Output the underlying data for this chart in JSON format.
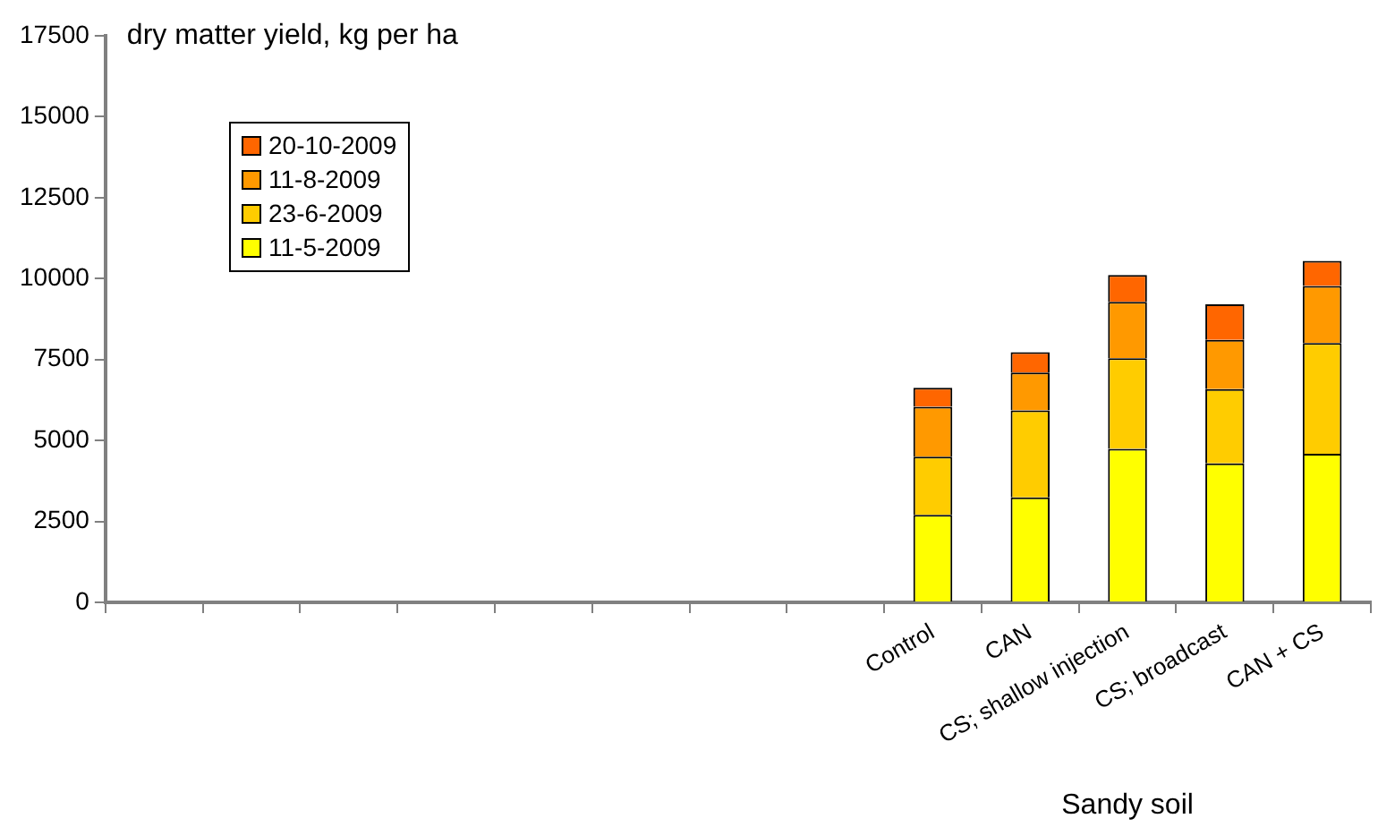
{
  "chart_data": {
    "type": "bar",
    "stacked": true,
    "ylabel": "dry matter yield, kg per ha",
    "annotations": [
      "Sandy soil"
    ],
    "categories": [
      null,
      null,
      null,
      null,
      null,
      null,
      null,
      null,
      "Control",
      "CAN",
      "CS; shallow injection",
      "CS; broadcast",
      "CAN + CS"
    ],
    "series": [
      {
        "name": "11-5-2009",
        "color": "#ffff00",
        "values": [
          null,
          null,
          null,
          null,
          null,
          null,
          null,
          null,
          2700,
          3240,
          4740,
          4290,
          4590
        ]
      },
      {
        "name": "23-6-2009",
        "color": "#ffcc00",
        "values": [
          null,
          null,
          null,
          null,
          null,
          null,
          null,
          null,
          1800,
          2690,
          2800,
          2300,
          3420
        ]
      },
      {
        "name": "11-8-2009",
        "color": "#ff9900",
        "values": [
          null,
          null,
          null,
          null,
          null,
          null,
          null,
          null,
          1540,
          1170,
          1740,
          1520,
          1760
        ]
      },
      {
        "name": "20-10-2009",
        "color": "#ff6600",
        "values": [
          null,
          null,
          null,
          null,
          null,
          null,
          null,
          null,
          590,
          630,
          830,
          1100,
          780
        ]
      }
    ],
    "ylim": [
      0,
      17500
    ],
    "yticks": [
      0,
      2500,
      5000,
      7500,
      10000,
      12500,
      15000,
      17500
    ],
    "grid": false,
    "legend": "top left"
  }
}
